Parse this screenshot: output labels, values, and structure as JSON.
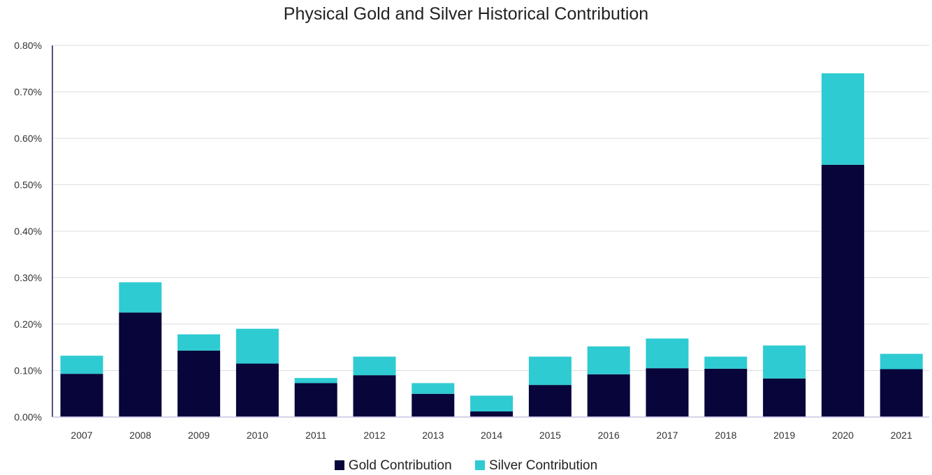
{
  "chart_data": {
    "type": "bar",
    "stacked": true,
    "title": "Physical Gold and Silver Historical Contribution",
    "xlabel": "",
    "ylabel": "",
    "categories": [
      "2007",
      "2008",
      "2009",
      "2010",
      "2011",
      "2012",
      "2013",
      "2014",
      "2015",
      "2016",
      "2017",
      "2018",
      "2019",
      "2020",
      "2021"
    ],
    "series": [
      {
        "name": "Gold Contribution",
        "values": [
          0.093,
          0.225,
          0.143,
          0.115,
          0.073,
          0.09,
          0.05,
          0.012,
          0.069,
          0.092,
          0.105,
          0.104,
          0.083,
          0.543,
          0.103
        ]
      },
      {
        "name": "Silver Contribution",
        "values": [
          0.039,
          0.065,
          0.035,
          0.075,
          0.011,
          0.04,
          0.023,
          0.034,
          0.061,
          0.06,
          0.064,
          0.026,
          0.071,
          0.197,
          0.033
        ]
      }
    ],
    "ylim": [
      0,
      0.8
    ],
    "yticks": [
      "0.00%",
      "0.10%",
      "0.20%",
      "0.30%",
      "0.40%",
      "0.50%",
      "0.60%",
      "0.70%",
      "0.80%"
    ],
    "grid": true,
    "legend_position": "bottom",
    "colors": [
      "#07053a",
      "#2ecbd2"
    ]
  }
}
